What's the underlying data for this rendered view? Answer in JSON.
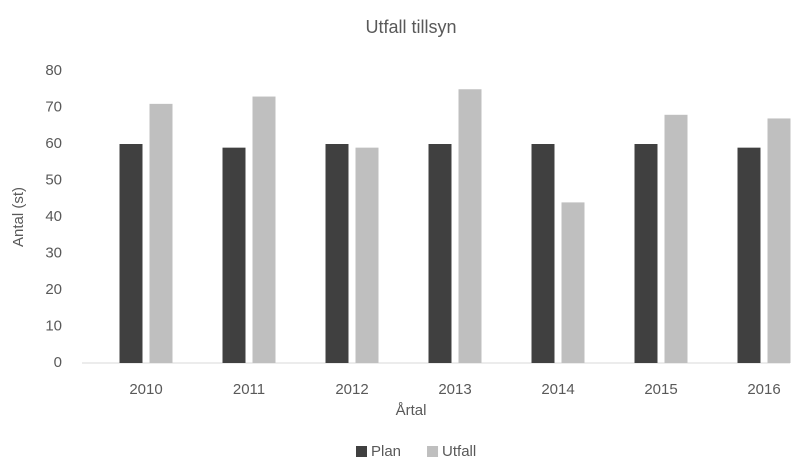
{
  "chart_data": {
    "type": "bar",
    "title": "Utfall tillsyn",
    "x_label": "Årtal",
    "y_label": "Antal (st)",
    "categories": [
      "2010",
      "2011",
      "2012",
      "2013",
      "2014",
      "2015",
      "2016"
    ],
    "series": [
      {
        "name": "Plan",
        "color": "#404040",
        "values": [
          60,
          59,
          60,
          60,
          60,
          60,
          59
        ]
      },
      {
        "name": "Utfall",
        "color": "#bfbfbf",
        "values": [
          71,
          73,
          59,
          75,
          44,
          68,
          67
        ]
      }
    ],
    "ylim": [
      0,
      80
    ],
    "yticks": [
      0,
      10,
      20,
      30,
      40,
      50,
      60,
      70,
      80
    ],
    "grid": false,
    "legend": "bottom"
  }
}
